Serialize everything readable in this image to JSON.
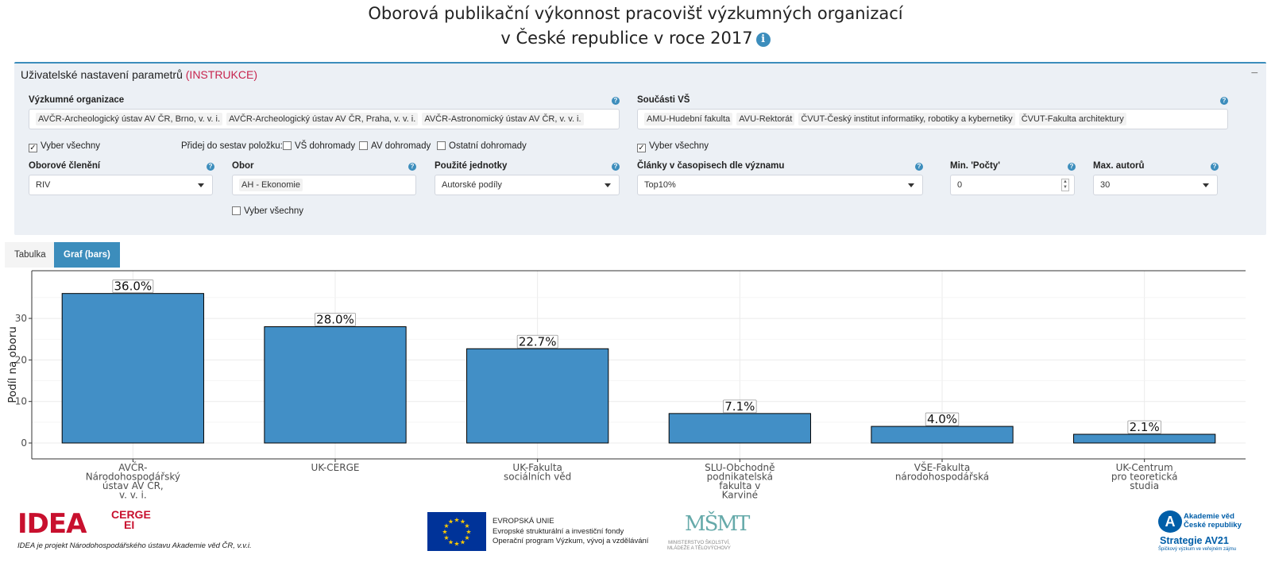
{
  "header": {
    "title_line1": "Oborová publikační výkonnost pracovišť výzkumných organizací",
    "title_line2": "v České republice v roce 2017",
    "info_icon": "info-icon"
  },
  "settings": {
    "heading": "Uživatelské nastavení parametrů",
    "instructions_link": "(INSTRUKCE)",
    "collapse_label": "−",
    "research_orgs": {
      "label": "Výzkumné organizace",
      "chips": [
        "AVČR-Archeologický ústav AV ČR, Brno, v. v. i.",
        "AVČR-Archeologický ústav AV ČR, Praha, v. v. i.",
        "AVČR-Astronomický ústav AV ČR, v. v. i."
      ]
    },
    "univ_parts": {
      "label": "Součásti VŠ",
      "chips": [
        "AMU-Hudební fakulta",
        "AVU-Rektorát",
        "ČVUT-Český institut informatiky, robotiky a kybernetiky",
        "ČVUT-Fakulta architektury"
      ]
    },
    "select_all_orgs": "Vyber všechny",
    "add_to_sets_label": "Přidej do sestav položku:",
    "add_vs": "VŠ dohromady",
    "add_av": "AV dohromady",
    "add_other": "Ostatní dohromady",
    "select_all_parts": "Vyber všechny",
    "field_division": {
      "label": "Oborové členění",
      "value": "RIV"
    },
    "field": {
      "label": "Obor",
      "value": "AH - Ekonomie",
      "select_all": "Vyber všechny"
    },
    "units": {
      "label": "Použité jednotky",
      "value": "Autorské podíly"
    },
    "articles": {
      "label": "Články v časopisech dle významu",
      "value": "Top10%"
    },
    "min_counts": {
      "label": "Min. 'Počty'",
      "value": "0"
    },
    "max_authors": {
      "label": "Max. autorů",
      "value": "30"
    },
    "help_icon": "?"
  },
  "tabs": {
    "table": "Tabulka",
    "graph": "Graf (bars)"
  },
  "chart_data": {
    "type": "bar",
    "ylabel": "Podíl na oboru",
    "ylim": [
      0,
      40
    ],
    "yticks": [
      0,
      10,
      20,
      30
    ],
    "grid": true,
    "bar_color": "#428fc6",
    "categories": [
      [
        "AVČR-",
        "Národohospodářský",
        "ústav AV ČR,",
        "v. v. i."
      ],
      [
        "UK-CERGE"
      ],
      [
        "UK-Fakulta",
        "sociálních věd"
      ],
      [
        "SLU-Obchodně",
        "podnikatelská",
        "fakulta v",
        "Karviné"
      ],
      [
        "VŠE-Fakulta",
        "národohospodářská"
      ],
      [
        "UK-Centrum",
        "pro teoretická",
        "studia"
      ]
    ],
    "values": [
      36.0,
      28.0,
      22.7,
      7.1,
      4.0,
      2.1
    ],
    "labels": [
      "36.0%",
      "28.0%",
      "22.7%",
      "7.1%",
      "4.0%",
      "2.1%"
    ]
  },
  "footer": {
    "idea_logo": "IDEA",
    "cerge": "CERGE",
    "ei": "EI",
    "idea_caption": "IDEA je projekt Národohospodářského ústavu Akademie věd ČR, v.v.i.",
    "eu_line1": "EVROPSKÁ UNIE",
    "eu_line2": "Evropské strukturální a investiční fondy",
    "eu_line3": "Operační program Výzkum, vývoj a vzdělávání",
    "msmt_logo": "MŠMT",
    "msmt_line1": "MINISTERSTVO ŠKOLSTVÍ,",
    "msmt_line2": "MLÁDEŽE A TĚLOVÝCHOVY",
    "av_line1": "Akademie věd",
    "av_line2": "České republiky",
    "av_strategy": "Strategie AV21",
    "av_tagline": "Špičkový výzkum ve veřejném zájmu",
    "accent": "#3c8dbc"
  }
}
